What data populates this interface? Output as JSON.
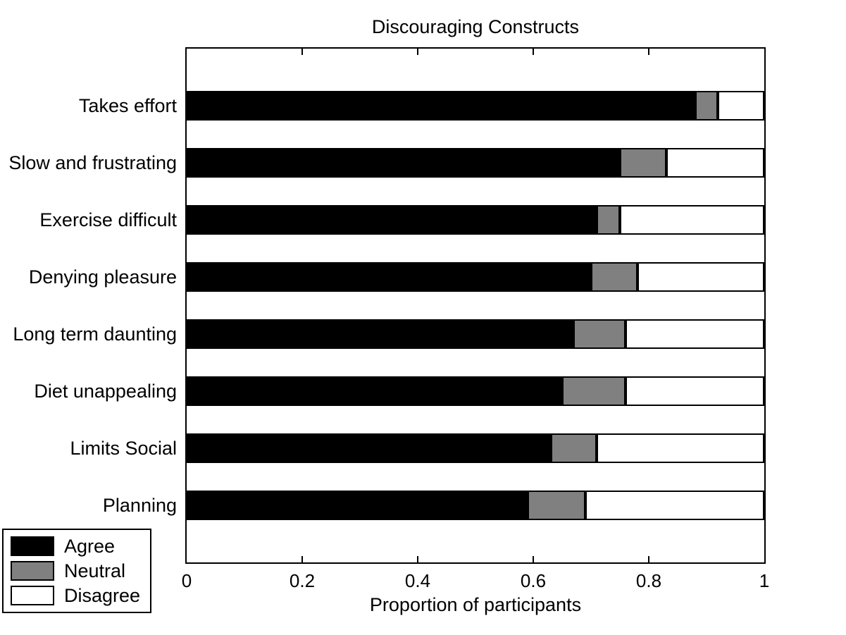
{
  "figure": {
    "background_color": "#ffffff",
    "text_color": "#000000"
  },
  "chart_data": {
    "type": "bar",
    "orientation": "horizontal",
    "stacked": true,
    "title": "Discouraging Constructs",
    "xlabel": "Proportion of participants",
    "xlim": [
      0,
      1
    ],
    "xticks": [
      0,
      0.2,
      0.4,
      0.6,
      0.8,
      1
    ],
    "xtick_labels": [
      "0",
      "0.2",
      "0.4",
      "0.6",
      "0.8",
      "1"
    ],
    "grid": false,
    "box": true,
    "categories": [
      "Takes effort",
      "Slow and frustrating",
      "Exercise difficult",
      "Denying pleasure",
      "Long term daunting",
      "Diet unappealing",
      "Limits Social",
      "Planning"
    ],
    "series": [
      {
        "name": "Agree",
        "color": "#000000",
        "values": [
          0.88,
          0.75,
          0.71,
          0.7,
          0.67,
          0.65,
          0.63,
          0.59
        ]
      },
      {
        "name": "Neutral",
        "color": "#808080",
        "values": [
          0.04,
          0.08,
          0.04,
          0.08,
          0.09,
          0.11,
          0.08,
          0.1
        ]
      },
      {
        "name": "Disagree",
        "color": "#ffffff",
        "values": [
          0.08,
          0.17,
          0.25,
          0.22,
          0.24,
          0.24,
          0.29,
          0.31
        ]
      }
    ],
    "bar_edge_color": "#000000",
    "legend": {
      "position": "outside-bottom-left",
      "items": [
        "Agree",
        "Neutral",
        "Disagree"
      ]
    }
  }
}
